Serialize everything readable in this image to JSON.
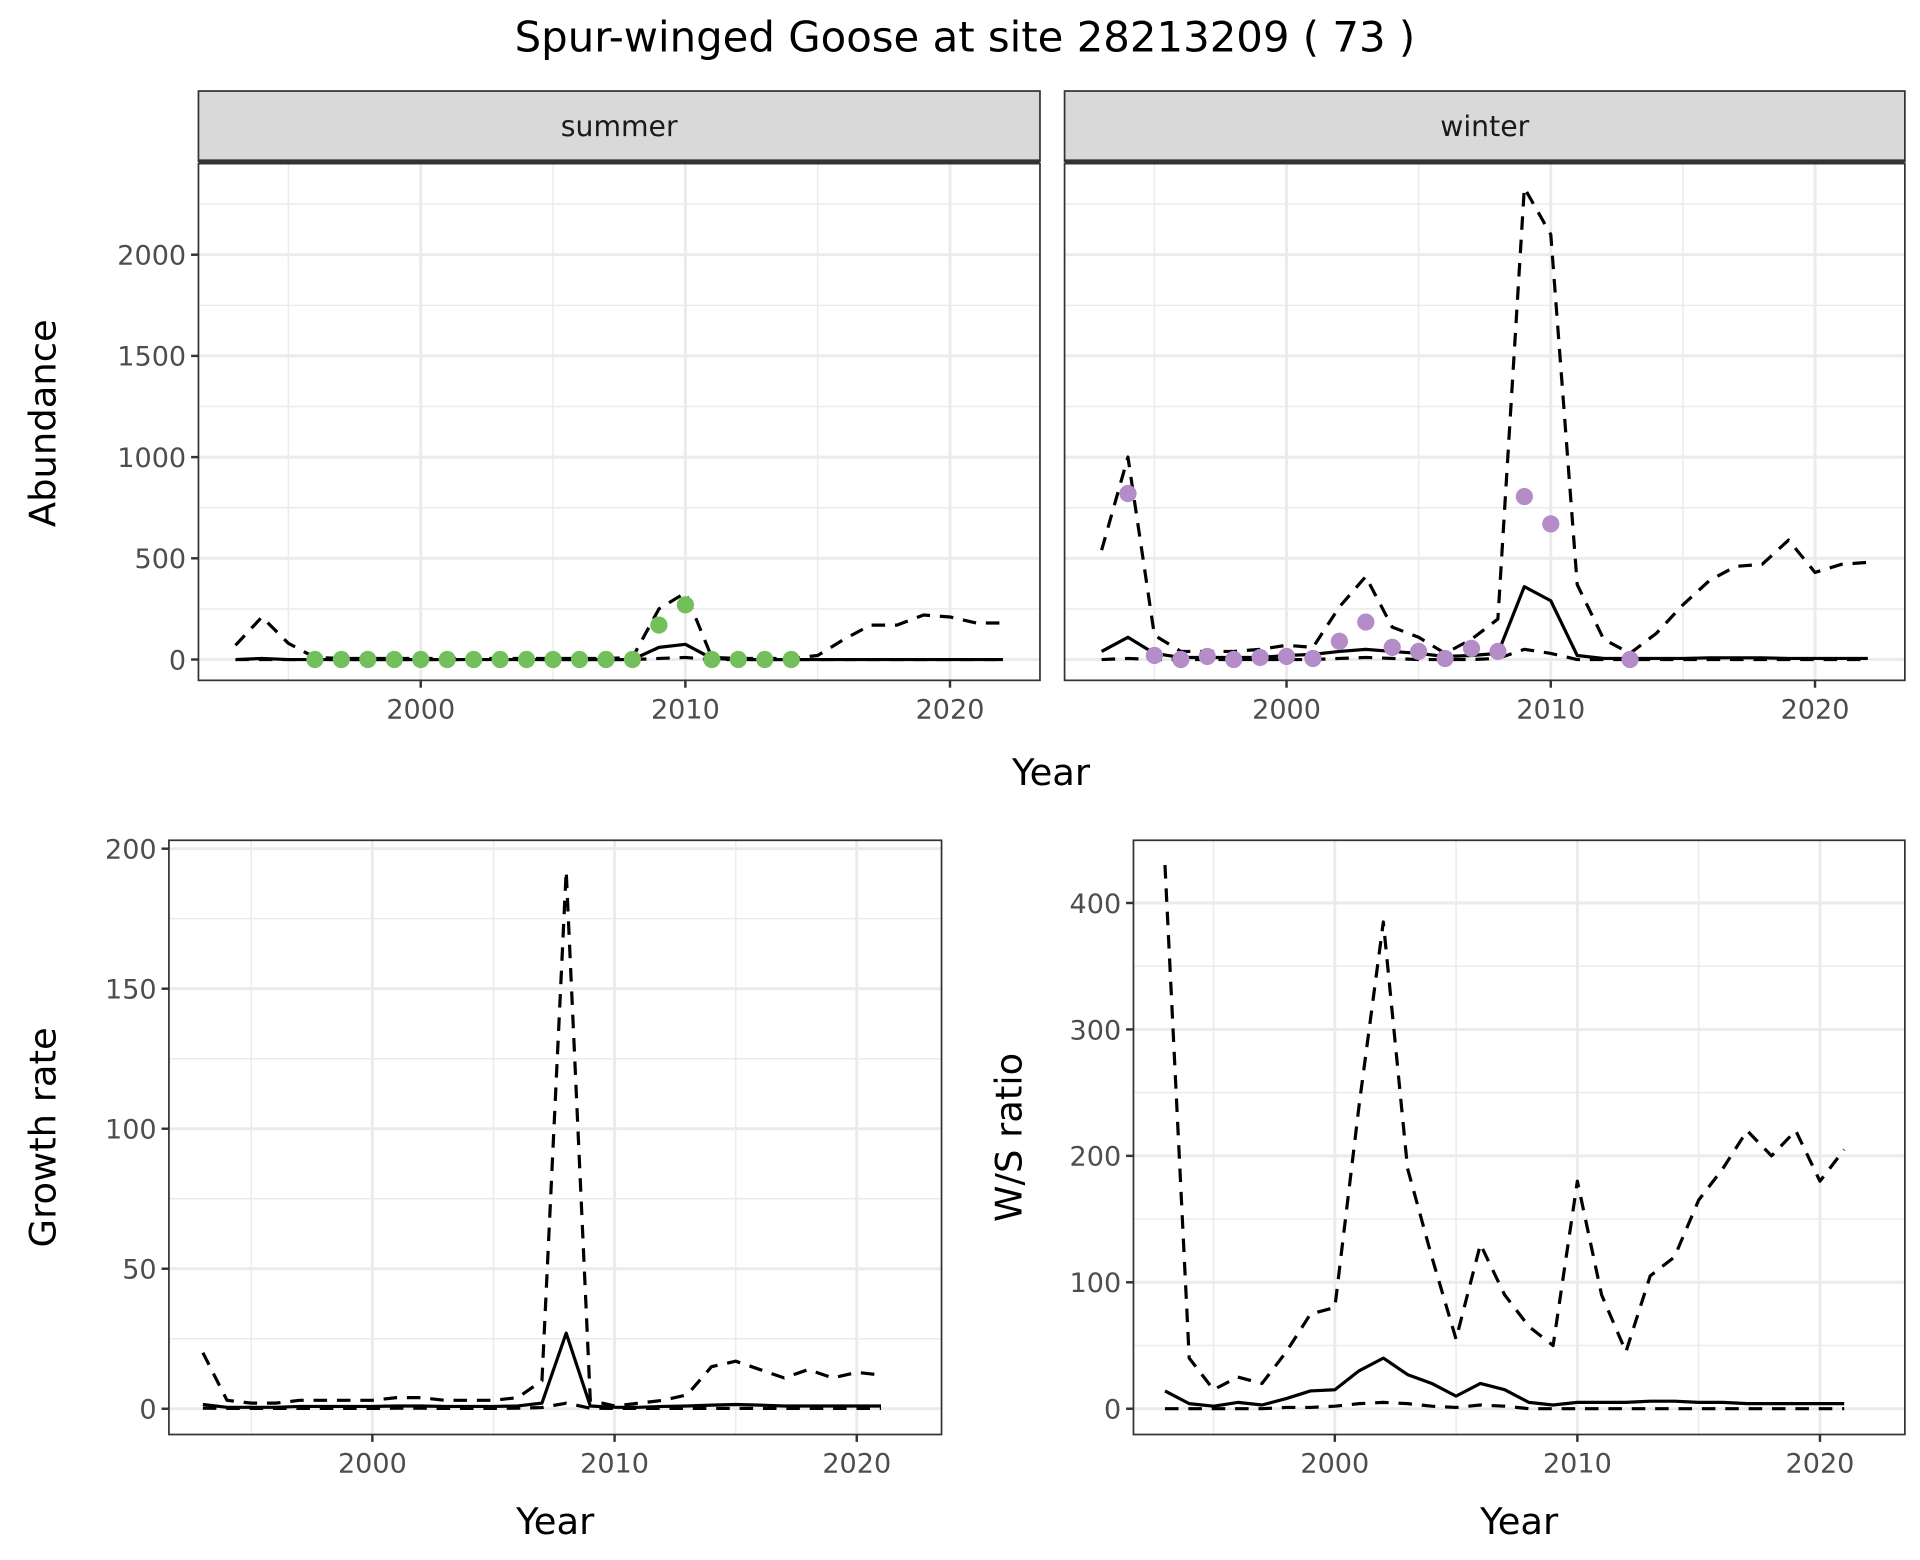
{
  "title": "Spur-winged Goose at site 28213209 ( 73 )",
  "colors": {
    "summer_points": "#73bf5c",
    "winter_points": "#b48cc8",
    "lines": "#000000",
    "grid": "#ebebeb",
    "strip": "#d9d9d9"
  },
  "chart_data": [
    {
      "id": "summer",
      "type": "line",
      "strip_label": "summer",
      "xlabel": "Year",
      "ylabel": "Abundance",
      "xlim": [
        1991.6,
        2023.4
      ],
      "ylim": [
        -103,
        2450
      ],
      "xticks": [
        2000,
        2010,
        2020
      ],
      "yticks": [
        0,
        500,
        1000,
        1500,
        2000
      ],
      "x": [
        1993,
        1994,
        1995,
        1996,
        1997,
        1998,
        1999,
        2000,
        2001,
        2002,
        2003,
        2004,
        2005,
        2006,
        2007,
        2008,
        2009,
        2010,
        2011,
        2012,
        2013,
        2014,
        2015,
        2016,
        2017,
        2018,
        2019,
        2020,
        2021,
        2022
      ],
      "series": [
        {
          "name": "estimate",
          "style": "solid",
          "values": [
            0,
            5,
            0,
            0,
            0,
            0,
            0,
            0,
            0,
            0,
            0,
            0,
            0,
            0,
            0,
            0,
            60,
            75,
            5,
            0,
            0,
            0,
            0,
            0,
            0,
            0,
            0,
            0,
            0,
            0
          ]
        },
        {
          "name": "upper",
          "style": "dashed",
          "values": [
            70,
            210,
            80,
            10,
            5,
            5,
            5,
            5,
            5,
            5,
            5,
            5,
            5,
            5,
            5,
            10,
            250,
            330,
            10,
            5,
            5,
            5,
            20,
            100,
            170,
            170,
            220,
            210,
            180,
            180
          ]
        },
        {
          "name": "lower",
          "style": "dashed",
          "values": [
            0,
            0,
            0,
            0,
            0,
            0,
            0,
            0,
            0,
            0,
            0,
            0,
            0,
            0,
            0,
            0,
            5,
            10,
            0,
            0,
            0,
            0,
            0,
            0,
            0,
            0,
            0,
            0,
            0,
            0
          ]
        }
      ],
      "points": {
        "x": [
          1996,
          1997,
          1998,
          1999,
          2000,
          2001,
          2002,
          2003,
          2004,
          2005,
          2006,
          2007,
          2008,
          2009,
          2010,
          2011,
          2012,
          2013,
          2014
        ],
        "y": [
          0,
          0,
          0,
          0,
          0,
          0,
          0,
          0,
          0,
          0,
          0,
          0,
          0,
          170,
          270,
          0,
          0,
          0,
          0
        ]
      }
    },
    {
      "id": "winter",
      "type": "line",
      "strip_label": "winter",
      "xlabel": "Year",
      "ylabel": "Abundance",
      "xlim": [
        1991.6,
        2023.4
      ],
      "ylim": [
        -103,
        2450
      ],
      "xticks": [
        2000,
        2010,
        2020
      ],
      "yticks": [
        0,
        500,
        1000,
        1500,
        2000
      ],
      "x": [
        1993,
        1994,
        1995,
        1996,
        1997,
        1998,
        1999,
        2000,
        2001,
        2002,
        2003,
        2004,
        2005,
        2006,
        2007,
        2008,
        2009,
        2010,
        2011,
        2012,
        2013,
        2014,
        2015,
        2016,
        2017,
        2018,
        2019,
        2020,
        2021,
        2022
      ],
      "series": [
        {
          "name": "estimate",
          "style": "solid",
          "values": [
            40,
            110,
            30,
            10,
            10,
            10,
            10,
            20,
            25,
            40,
            50,
            40,
            30,
            15,
            20,
            30,
            360,
            290,
            20,
            5,
            5,
            5,
            5,
            8,
            8,
            8,
            5,
            5,
            5,
            5
          ]
        },
        {
          "name": "upper",
          "style": "dashed",
          "values": [
            540,
            1000,
            120,
            40,
            40,
            40,
            50,
            70,
            60,
            260,
            410,
            160,
            110,
            30,
            100,
            200,
            2330,
            2100,
            370,
            100,
            30,
            130,
            270,
            390,
            460,
            470,
            590,
            430,
            470,
            480
          ]
        },
        {
          "name": "lower",
          "style": "dashed",
          "values": [
            0,
            5,
            0,
            0,
            0,
            0,
            0,
            0,
            0,
            5,
            10,
            5,
            0,
            0,
            0,
            5,
            50,
            30,
            0,
            0,
            0,
            0,
            0,
            0,
            0,
            0,
            0,
            0,
            0,
            0
          ]
        }
      ],
      "points": {
        "x": [
          1994,
          1995,
          1996,
          1997,
          1998,
          1999,
          2000,
          2001,
          2002,
          2003,
          2004,
          2005,
          2006,
          2007,
          2008,
          2009,
          2010,
          2013
        ],
        "y": [
          820,
          20,
          0,
          15,
          0,
          10,
          15,
          5,
          90,
          185,
          60,
          40,
          5,
          55,
          40,
          805,
          670,
          0
        ]
      }
    },
    {
      "id": "growth",
      "type": "line",
      "xlabel": "Year",
      "ylabel": "Growth rate",
      "xlim": [
        1991.6,
        2023.5
      ],
      "ylim": [
        -9.2,
        203
      ],
      "xticks": [
        2000,
        2010,
        2020
      ],
      "yticks": [
        0,
        50,
        100,
        150,
        200
      ],
      "x": [
        1993,
        1994,
        1995,
        1996,
        1997,
        1998,
        1999,
        2000,
        2001,
        2002,
        2003,
        2004,
        2005,
        2006,
        2007,
        2008,
        2009,
        2010,
        2011,
        2012,
        2013,
        2014,
        2015,
        2016,
        2017,
        2018,
        2019,
        2020,
        2021
      ],
      "series": [
        {
          "name": "estimate",
          "style": "solid",
          "values": [
            1.5,
            0.5,
            0.5,
            0.5,
            0.8,
            0.8,
            0.8,
            0.8,
            1,
            1,
            0.8,
            0.8,
            0.8,
            1,
            2,
            27,
            1,
            0.5,
            0.5,
            0.8,
            1,
            1.3,
            1.5,
            1.3,
            1,
            1,
            1,
            1,
            1
          ]
        },
        {
          "name": "upper",
          "style": "dashed",
          "values": [
            20,
            3,
            2,
            2,
            3,
            3,
            3,
            3,
            4,
            4,
            3,
            3,
            3,
            4,
            10,
            192,
            3,
            1,
            2,
            3,
            5,
            15,
            17,
            14,
            11,
            14,
            11,
            13,
            12
          ]
        },
        {
          "name": "lower",
          "style": "dashed",
          "values": [
            0.2,
            0.1,
            0.1,
            0.1,
            0.1,
            0.1,
            0.1,
            0.1,
            0.2,
            0.2,
            0.1,
            0.1,
            0.1,
            0.2,
            0.4,
            2,
            0.2,
            0.1,
            0.1,
            0.1,
            0.1,
            0.1,
            0.1,
            0.1,
            0.1,
            0.1,
            0.1,
            0.1,
            0.1
          ]
        }
      ]
    },
    {
      "id": "ws",
      "type": "line",
      "xlabel": "Year",
      "ylabel": "W/S ratio",
      "xlim": [
        1991.7,
        2023.5
      ],
      "ylim": [
        -20.4,
        449.6
      ],
      "xticks": [
        2000,
        2010,
        2020
      ],
      "yticks": [
        0,
        100,
        200,
        300,
        400
      ],
      "x": [
        1993,
        1994,
        1995,
        1996,
        1997,
        1998,
        1999,
        2000,
        2001,
        2002,
        2003,
        2004,
        2005,
        2006,
        2007,
        2008,
        2009,
        2010,
        2011,
        2012,
        2013,
        2014,
        2015,
        2016,
        2017,
        2018,
        2019,
        2020,
        2021
      ],
      "series": [
        {
          "name": "estimate",
          "style": "solid",
          "values": [
            14,
            4,
            2,
            5,
            3,
            8,
            14,
            15,
            30,
            40,
            27,
            20,
            10,
            20,
            15,
            5,
            3,
            5,
            5,
            5,
            6,
            6,
            5,
            5,
            4,
            4,
            4,
            4,
            4
          ]
        },
        {
          "name": "upper",
          "style": "dashed",
          "values": [
            430,
            40,
            15,
            25,
            20,
            45,
            75,
            80,
            240,
            385,
            190,
            120,
            55,
            130,
            90,
            65,
            50,
            180,
            90,
            45,
            105,
            120,
            165,
            190,
            220,
            200,
            220,
            180,
            205
          ]
        },
        {
          "name": "lower",
          "style": "dashed",
          "values": [
            0,
            0,
            0,
            0,
            0,
            1,
            1,
            2,
            4,
            5,
            4,
            2,
            1,
            3,
            2,
            0,
            0,
            0,
            0,
            0,
            0,
            0,
            0,
            0,
            0,
            0,
            0,
            0,
            0
          ]
        }
      ]
    }
  ]
}
